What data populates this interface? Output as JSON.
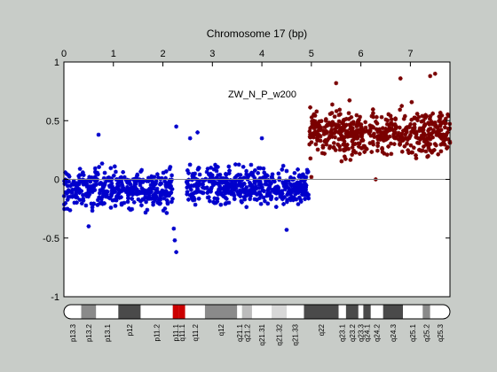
{
  "chart_data": {
    "type": "scatter",
    "title": "Chromosome 17 (bp)",
    "annotation": "ZW_N_P_w200",
    "x_ticks": [
      0,
      1,
      2,
      3,
      4,
      5,
      6,
      7
    ],
    "xlim": [
      0,
      7.8
    ],
    "y_ticks": [
      1,
      0.5,
      0,
      -0.5,
      -1
    ],
    "ylim": [
      -1,
      1
    ],
    "grid": false,
    "reference_line_y": 0,
    "series": [
      {
        "color": "#0000cc",
        "segments": [
          {
            "x": [
              0.0,
              2.2
            ],
            "mean": -0.08,
            "spread": 0.13
          },
          {
            "x": [
              2.48,
              4.95
            ],
            "mean": -0.06,
            "spread": 0.12
          }
        ],
        "outliers": [
          {
            "x": 2.27,
            "y": 0.45
          },
          {
            "x": 2.27,
            "y": -0.62
          },
          {
            "x": 2.24,
            "y": -0.52
          },
          {
            "x": 2.22,
            "y": -0.42
          },
          {
            "x": 2.7,
            "y": 0.4
          },
          {
            "x": 2.55,
            "y": 0.35
          },
          {
            "x": 0.7,
            "y": 0.38
          },
          {
            "x": 4.5,
            "y": -0.43
          },
          {
            "x": 4.0,
            "y": 0.35
          },
          {
            "x": 0.5,
            "y": -0.4
          }
        ]
      },
      {
        "color": "#7a0000",
        "segments": [
          {
            "x": [
              4.95,
              7.8
            ],
            "mean": 0.4,
            "spread": 0.15
          }
        ],
        "outliers": [
          {
            "x": 7.5,
            "y": 0.9
          },
          {
            "x": 7.4,
            "y": 0.88
          },
          {
            "x": 5.5,
            "y": 0.82
          },
          {
            "x": 6.8,
            "y": 0.86
          },
          {
            "x": 5.0,
            "y": 0.02
          },
          {
            "x": 6.3,
            "y": 0.0
          }
        ]
      }
    ],
    "ideogram": {
      "bands": [
        {
          "label": "p13.3",
          "x": [
            0.0,
            0.35
          ],
          "color": "#ffffff"
        },
        {
          "label": "p13.2",
          "x": [
            0.35,
            0.65
          ],
          "color": "#8a8a8a"
        },
        {
          "label": "p13.1",
          "x": [
            0.65,
            1.1
          ],
          "color": "#ffffff"
        },
        {
          "label": "p12",
          "x": [
            1.1,
            1.55
          ],
          "color": "#4a4a4a"
        },
        {
          "label": "p11.2",
          "x": [
            1.55,
            2.2
          ],
          "color": "#ffffff"
        },
        {
          "label": "p11.1",
          "x": [
            2.2,
            2.32
          ],
          "color": "#cc0000"
        },
        {
          "label": "q11.1",
          "x": [
            2.32,
            2.45
          ],
          "color": "#cc0000"
        },
        {
          "label": "q11.2",
          "x": [
            2.45,
            2.85
          ],
          "color": "#ffffff"
        },
        {
          "label": "q12",
          "x": [
            2.85,
            3.5
          ],
          "color": "#8a8a8a"
        },
        {
          "label": "q21.1",
          "x": [
            3.5,
            3.6
          ],
          "color": "#ffffff"
        },
        {
          "label": "q21.2",
          "x": [
            3.6,
            3.8
          ],
          "color": "#bcbcbc"
        },
        {
          "label": "q21.31",
          "x": [
            3.8,
            4.2
          ],
          "color": "#ffffff"
        },
        {
          "label": "q21.32",
          "x": [
            4.2,
            4.5
          ],
          "color": "#d8d8d8"
        },
        {
          "label": "q21.33",
          "x": [
            4.5,
            4.85
          ],
          "color": "#ffffff"
        },
        {
          "label": "q22",
          "x": [
            4.85,
            5.55
          ],
          "color": "#4a4a4a"
        },
        {
          "label": "q23.1",
          "x": [
            5.55,
            5.7
          ],
          "color": "#ffffff"
        },
        {
          "label": "q23.2",
          "x": [
            5.7,
            5.95
          ],
          "color": "#4a4a4a"
        },
        {
          "label": "q23.3",
          "x": [
            5.95,
            6.05
          ],
          "color": "#ffffff"
        },
        {
          "label": "q24.1",
          "x": [
            6.05,
            6.2
          ],
          "color": "#4a4a4a"
        },
        {
          "label": "q24.2",
          "x": [
            6.2,
            6.45
          ],
          "color": "#ffffff"
        },
        {
          "label": "q24.3",
          "x": [
            6.45,
            6.85
          ],
          "color": "#4a4a4a"
        },
        {
          "label": "q25.1",
          "x": [
            6.85,
            7.25
          ],
          "color": "#ffffff"
        },
        {
          "label": "q25.2",
          "x": [
            7.25,
            7.4
          ],
          "color": "#8a8a8a"
        },
        {
          "label": "q25.3",
          "x": [
            7.4,
            7.8
          ],
          "color": "#ffffff"
        }
      ]
    }
  }
}
